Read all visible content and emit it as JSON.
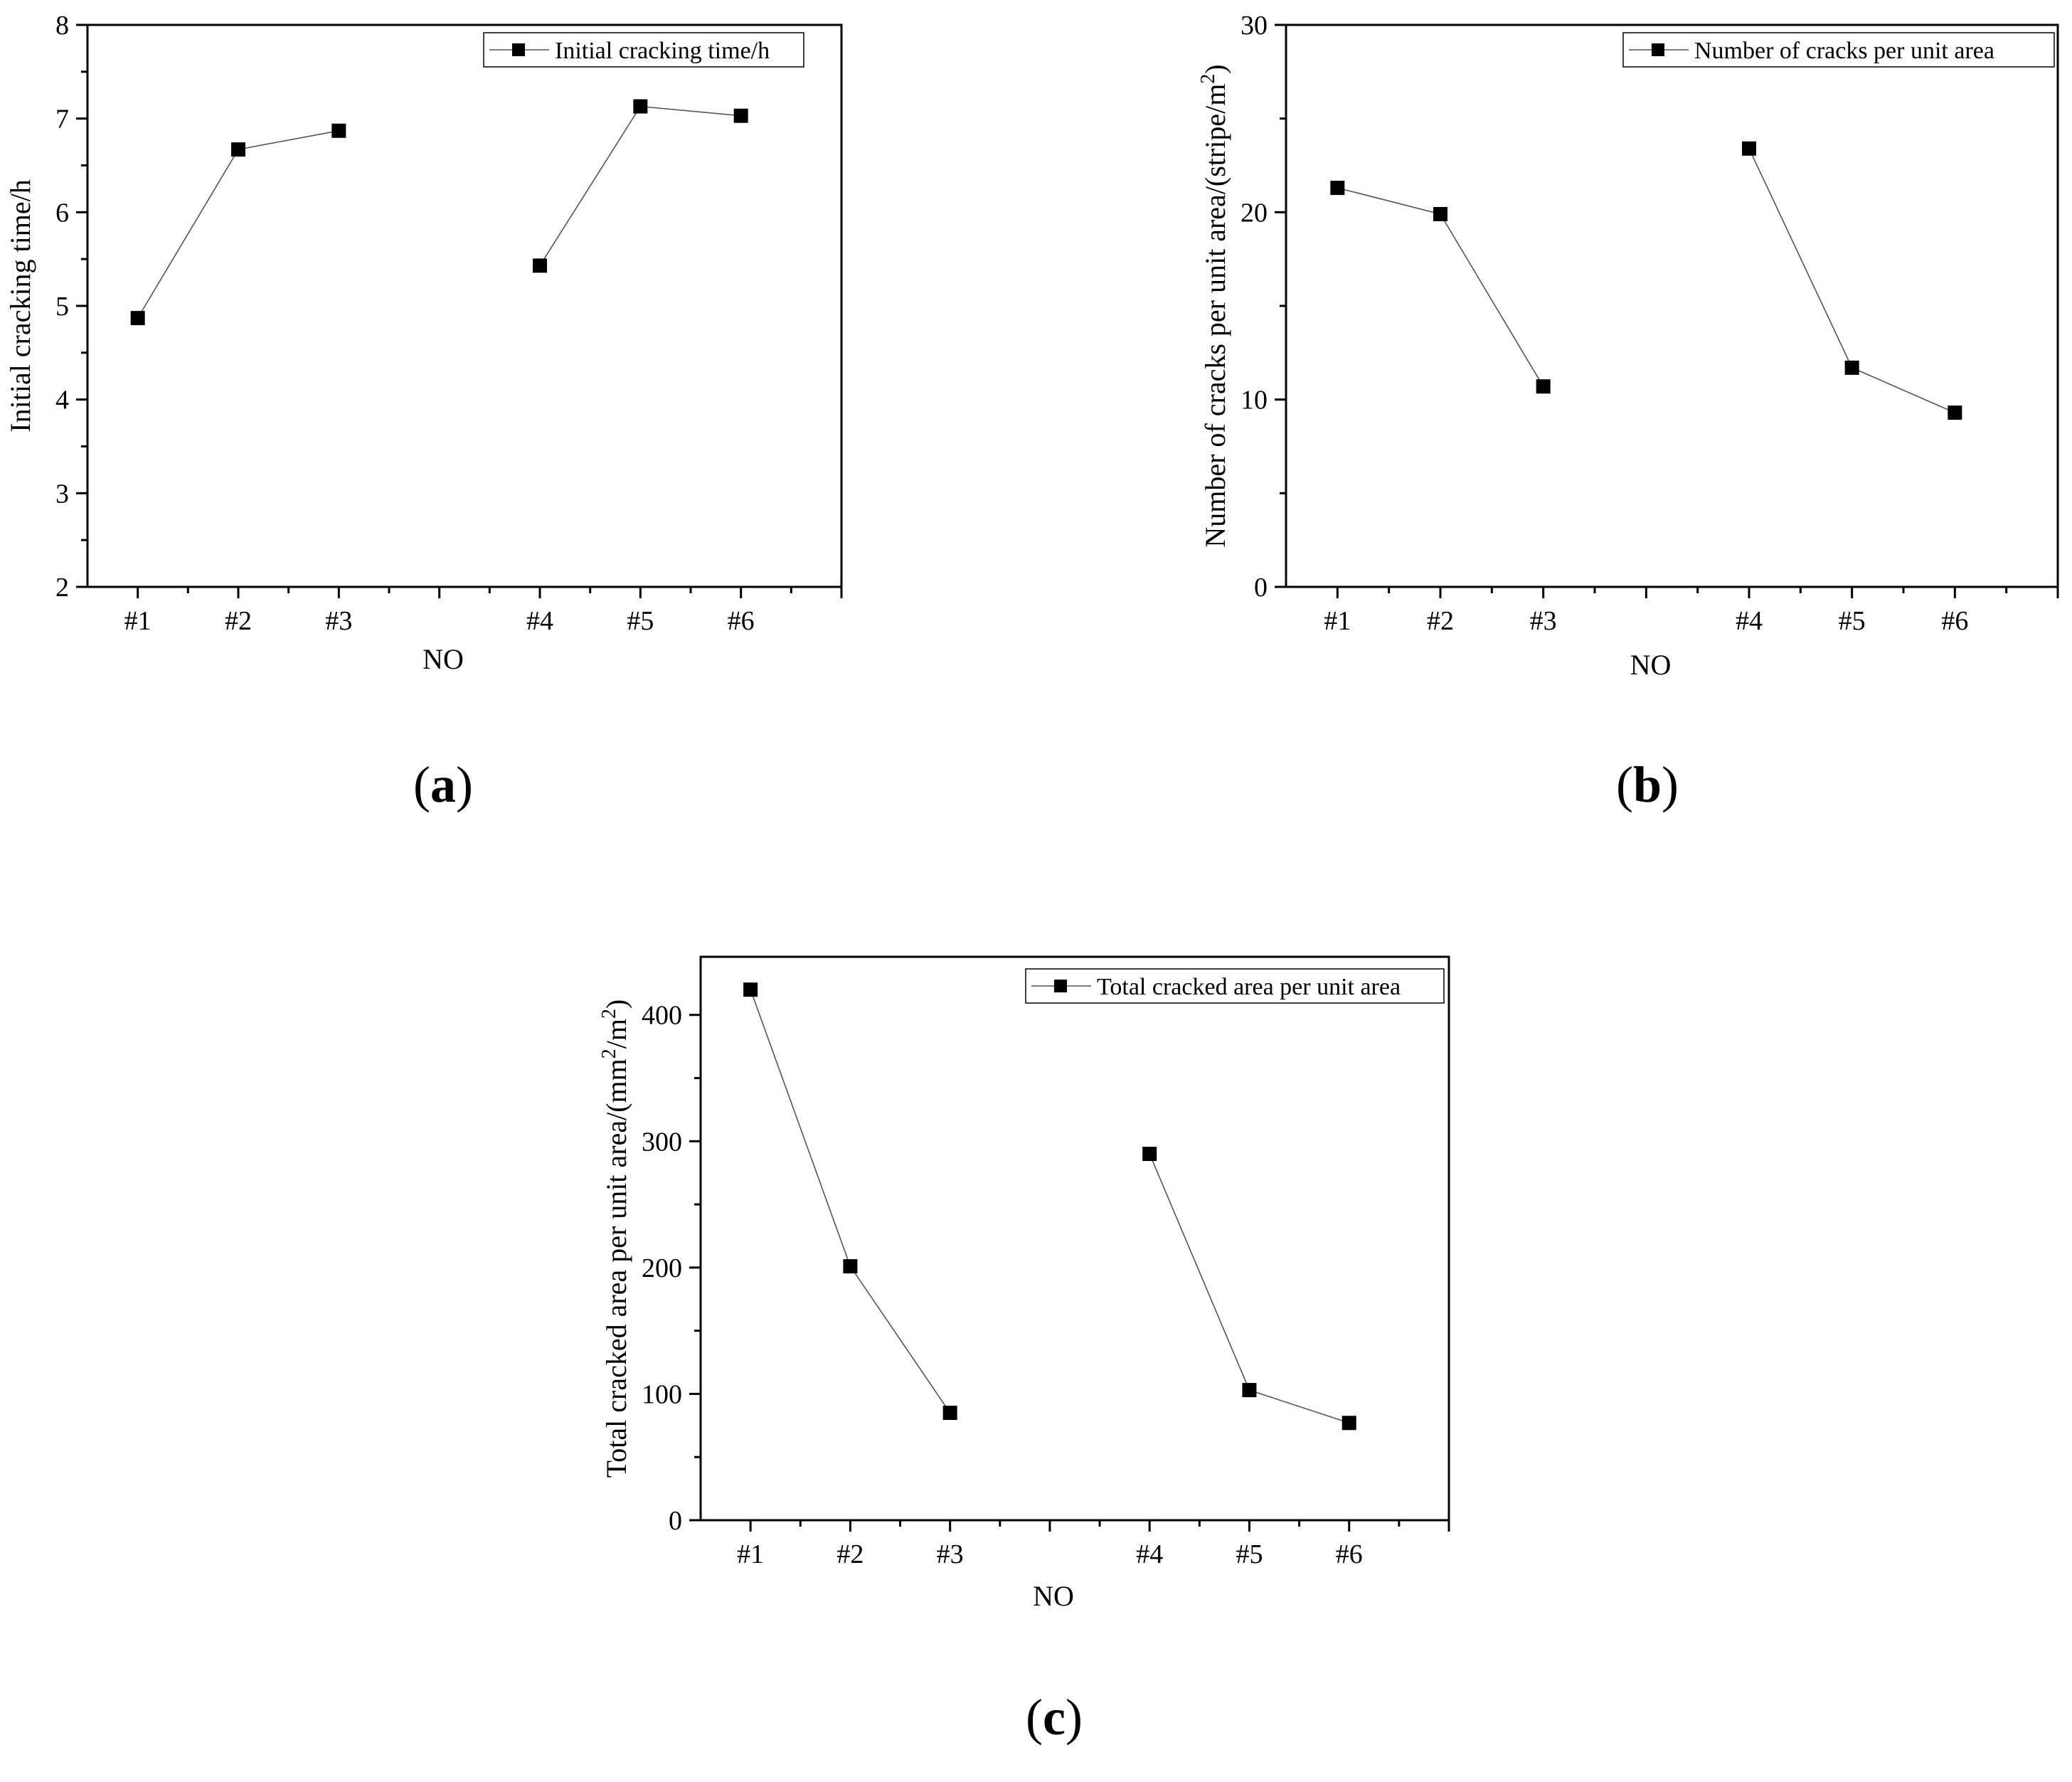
{
  "chart_data": [
    {
      "type": "line",
      "panel_label": "(a)",
      "categories": [
        "#1",
        "#2",
        "#3",
        "",
        "#4",
        "#5",
        "#6",
        ""
      ],
      "series": [
        {
          "name": "Initial cracking time/h",
          "values": [
            4.87,
            6.67,
            6.87,
            null,
            5.43,
            7.13,
            7.03,
            null
          ]
        }
      ],
      "xlabel": "NO",
      "ylabel": "Initial cracking time/h",
      "ylim": [
        2,
        8
      ],
      "yticks": [
        2,
        3,
        4,
        5,
        6,
        7,
        8
      ],
      "yticks_labels": [
        "2",
        "3",
        "4",
        "5",
        "6",
        "7",
        "8"
      ],
      "legend": "top-right",
      "grid": false
    },
    {
      "type": "line",
      "panel_label": "(b)",
      "categories": [
        "#1",
        "#2",
        "#3",
        "",
        "#4",
        "#5",
        "#6",
        ""
      ],
      "series": [
        {
          "name": "Number of cracks per unit area",
          "values": [
            21.3,
            19.9,
            10.7,
            null,
            23.4,
            11.7,
            9.3,
            null
          ]
        }
      ],
      "xlabel": "NO",
      "ylabel": "Number of cracks per unit area/(stripe/m",
      "ylabel_sup": "2",
      "ylabel_tail": ")",
      "ylim": [
        0,
        30
      ],
      "yticks": [
        0,
        10,
        20,
        30
      ],
      "yticks_labels": [
        "0",
        "10",
        "20",
        "30"
      ],
      "legend": "top-right",
      "grid": false
    },
    {
      "type": "line",
      "panel_label": "(c)",
      "categories": [
        "#1",
        "#2",
        "#3",
        "",
        "#4",
        "#5",
        "#6",
        ""
      ],
      "series": [
        {
          "name": "Total cracked area per unit area",
          "values": [
            420,
            201,
            85,
            null,
            290,
            103,
            77,
            null
          ]
        }
      ],
      "xlabel": "NO",
      "ylabel": "Total cracked area per unit area/(mm",
      "ylabel_sup": "2",
      "ylabel_mid": "/m",
      "ylabel_sup2": "2",
      "ylabel_tail": ")",
      "ylim": [
        0,
        400
      ],
      "yticks": [
        0,
        100,
        200,
        300,
        400
      ],
      "yticks_labels": [
        "0",
        "100",
        "200",
        "300",
        "400"
      ],
      "legend": "top-right",
      "grid": false
    }
  ]
}
